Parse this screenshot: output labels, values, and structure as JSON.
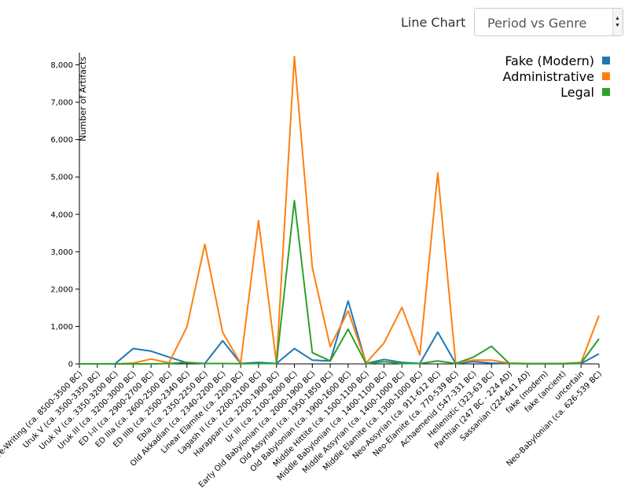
{
  "header": {
    "chart_type_label": "Line Chart",
    "selected_view": "Period vs Genre"
  },
  "chart_data": {
    "type": "line",
    "title": "",
    "xlabel": "",
    "ylabel": "Number of Artifacts",
    "ylim": [
      0,
      8200
    ],
    "yticks": [
      0,
      1000,
      2000,
      3000,
      4000,
      5000,
      6000,
      7000,
      8000
    ],
    "ytick_labels": [
      "0",
      "1,000",
      "2,000",
      "3,000",
      "4,000",
      "5,000",
      "6,000",
      "7,000",
      "8,000"
    ],
    "grid": false,
    "legend_position": "top-right",
    "categories": [
      "Pre-Writing (ca. 8500-3500 BC)",
      "Uruk V (ca. 3500-3350 BC)",
      "Uruk IV (ca. 3350-3200 BC)",
      "Uruk III (ca. 3200-3000 BC)",
      "ED I-II (ca. 2900-2700 BC)",
      "ED IIIa (ca. 2600-2500 BC)",
      "ED IIIb (ca. 2500-2340 BC)",
      "Ebla (ca. 2350-2250 BC)",
      "Old Akkadian (ca. 2340-2200 BC)",
      "Linear Elamite (ca. 2200 BC)",
      "Lagash II (ca. 2200-2100 BC)",
      "Harappan (ca. 2200-1900 BC)",
      "Ur III (ca. 2100-2000 BC)",
      "Early Old Babylonian (ca. 2000-1900 BC)",
      "Old Assyrian (ca. 1950-1850 BC)",
      "Old Babylonian (ca. 1900-1600 BC)",
      "Middle Hittite (ca. 1500-1100 BC)",
      "Middle Babylonian (ca. 1400-1100 BC)",
      "Middle Assyrian (ca. 1400-1000 BC)",
      "Middle Elamite (ca. 1300-1000 BC)",
      "Neo-Assyrian (ca. 911-612 BC)",
      "Neo-Elamite (ca. 770-539 BC)",
      "Achaemenid (547-331 BC)",
      "Hellenistic (323-63 BC)",
      "Parthian (247 BC - 224 AD)",
      "Sassanian (224-641 AD)",
      "fake (modern)",
      "fake (ancient)",
      "uncertain",
      "Neo-Babylonian (ca. 626-539 BC)"
    ],
    "series": [
      {
        "name": "Fake (Modern)",
        "color": "#1f77b4",
        "values": [
          0,
          0,
          5,
          410,
          340,
          180,
          30,
          10,
          620,
          10,
          40,
          10,
          410,
          100,
          80,
          1680,
          10,
          120,
          40,
          10,
          850,
          10,
          60,
          20,
          10,
          5,
          5,
          5,
          10,
          270
        ]
      },
      {
        "name": "Administrative",
        "color": "#ff7f0e",
        "values": [
          0,
          0,
          0,
          20,
          130,
          30,
          990,
          3200,
          840,
          20,
          3830,
          20,
          8220,
          2580,
          460,
          1420,
          20,
          560,
          1510,
          240,
          5110,
          20,
          100,
          100,
          20,
          10,
          10,
          10,
          40,
          1290
        ]
      },
      {
        "name": "Legal",
        "color": "#2ca02c",
        "values": [
          0,
          0,
          0,
          0,
          0,
          10,
          40,
          10,
          10,
          5,
          10,
          10,
          4370,
          300,
          80,
          930,
          5,
          60,
          10,
          10,
          80,
          10,
          180,
          470,
          10,
          5,
          5,
          5,
          20,
          670
        ]
      }
    ]
  }
}
